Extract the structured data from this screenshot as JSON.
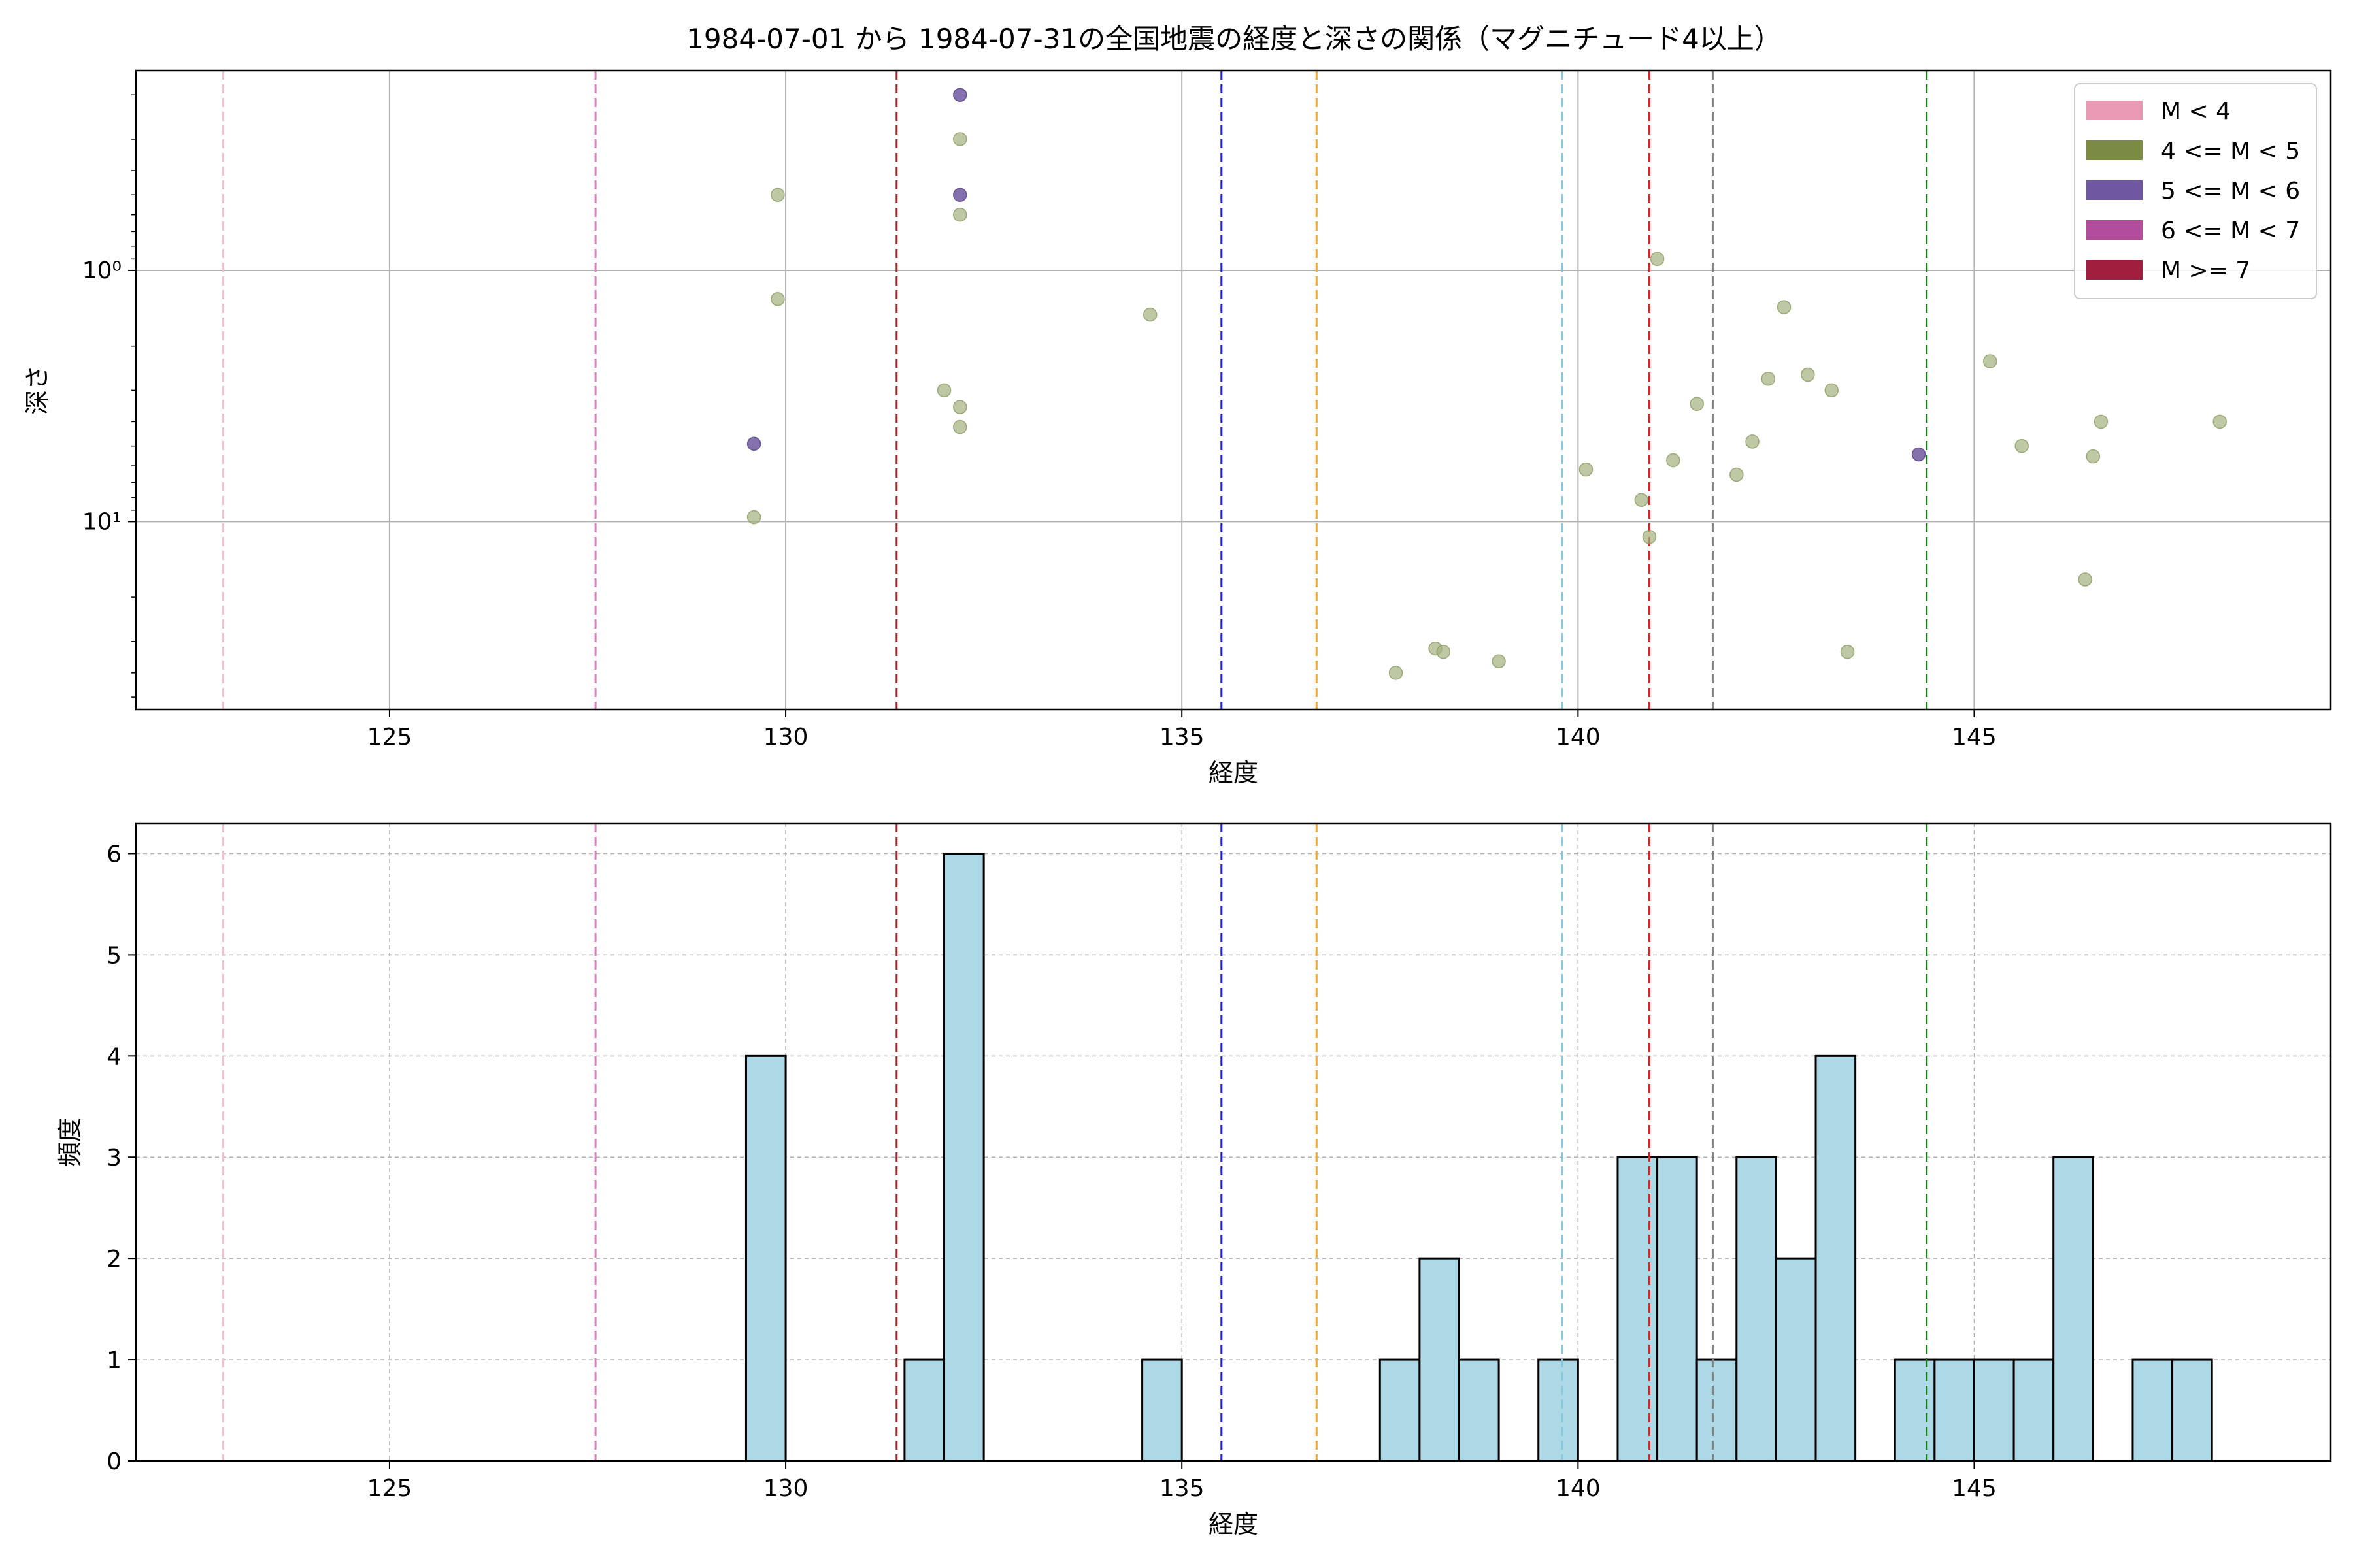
{
  "chart_data": [
    {
      "type": "scatter",
      "title": "1984-07-01 から 1984-07-31の全国地震の経度と深さの関係（マグニチュード4以上）",
      "xlabel": "経度",
      "ylabel": "深さ",
      "xlim": [
        121.8,
        149.5
      ],
      "ylim": [
        56,
        0.16
      ],
      "yscale": "log",
      "y_inverted": true,
      "xticks": [
        125,
        130,
        135,
        140,
        145
      ],
      "xtick_labels": [
        "125",
        "130",
        "135",
        "140",
        "145"
      ],
      "yticks": [
        1,
        10
      ],
      "ytick_labels": [
        "10⁰",
        "10¹"
      ],
      "grid": true,
      "legend": {
        "position": "top-right",
        "entries": [
          {
            "label": "M < 4",
            "color": "#e899b3"
          },
          {
            "label": "4 <= M < 5",
            "color": "#7b8b43"
          },
          {
            "label": "5 <= M < 6",
            "color": "#6f58a0"
          },
          {
            "label": "6 <= M < 7",
            "color": "#b24d9b"
          },
          {
            "label": "M >= 7",
            "color": "#a01f3f"
          }
        ]
      },
      "series": [
        {
          "name": "4 <= M < 5",
          "color": "#a3b07e",
          "points": [
            [
              129.6,
              9.6
            ],
            [
              129.9,
              0.5
            ],
            [
              129.9,
              1.3
            ],
            [
              132.0,
              3.0
            ],
            [
              132.2,
              3.5
            ],
            [
              132.2,
              4.2
            ],
            [
              132.2,
              0.6
            ],
            [
              132.2,
              0.3
            ],
            [
              134.6,
              1.5
            ],
            [
              137.7,
              40
            ],
            [
              138.2,
              32
            ],
            [
              138.3,
              33
            ],
            [
              139.0,
              36
            ],
            [
              140.1,
              6.2
            ],
            [
              140.8,
              8.2
            ],
            [
              140.9,
              11.5
            ],
            [
              141.0,
              0.9
            ],
            [
              141.2,
              5.7
            ],
            [
              141.5,
              3.4
            ],
            [
              142.0,
              6.5
            ],
            [
              142.2,
              4.8
            ],
            [
              142.4,
              2.7
            ],
            [
              142.6,
              1.4
            ],
            [
              142.9,
              2.6
            ],
            [
              143.2,
              3.0
            ],
            [
              143.4,
              33
            ],
            [
              145.2,
              2.3
            ],
            [
              145.6,
              5.0
            ],
            [
              146.4,
              17
            ],
            [
              146.5,
              5.5
            ],
            [
              146.6,
              4.0
            ],
            [
              148.1,
              4.0
            ]
          ]
        },
        {
          "name": "5 <= M < 6",
          "color": "#6f58a0",
          "points": [
            [
              129.6,
              4.9
            ],
            [
              132.2,
              0.2
            ],
            [
              132.2,
              0.5
            ],
            [
              144.3,
              5.4
            ]
          ]
        }
      ],
      "vlines": [
        {
          "x": 122.9,
          "color": "#f4bfd3"
        },
        {
          "x": 127.6,
          "color": "#e07bc4"
        },
        {
          "x": 131.4,
          "color": "#9b2c2c"
        },
        {
          "x": 135.5,
          "color": "#1f1fd6"
        },
        {
          "x": 136.7,
          "color": "#f0a830"
        },
        {
          "x": 139.8,
          "color": "#86c8de"
        },
        {
          "x": 140.9,
          "color": "#e22020"
        },
        {
          "x": 141.7,
          "color": "#808080"
        },
        {
          "x": 144.4,
          "color": "#1e7a1e"
        }
      ]
    },
    {
      "type": "bar",
      "subtype": "histogram",
      "xlabel": "経度",
      "ylabel": "頻度",
      "xlim": [
        121.8,
        149.5
      ],
      "ylim": [
        0,
        6.3
      ],
      "xticks": [
        125,
        130,
        135,
        140,
        145
      ],
      "xtick_labels": [
        "125",
        "130",
        "135",
        "140",
        "145"
      ],
      "yticks": [
        0,
        1,
        2,
        3,
        4,
        5,
        6
      ],
      "ytick_labels": [
        "0",
        "1",
        "2",
        "3",
        "4",
        "5",
        "6"
      ],
      "grid": true,
      "bar_color": "#add8e6",
      "bin_width": 0.5,
      "bins": [
        {
          "x0": 129.5,
          "count": 4
        },
        {
          "x0": 131.5,
          "count": 1
        },
        {
          "x0": 132.0,
          "count": 6
        },
        {
          "x0": 134.5,
          "count": 1
        },
        {
          "x0": 137.5,
          "count": 1
        },
        {
          "x0": 138.0,
          "count": 2
        },
        {
          "x0": 138.5,
          "count": 1
        },
        {
          "x0": 139.5,
          "count": 1
        },
        {
          "x0": 140.5,
          "count": 3
        },
        {
          "x0": 141.0,
          "count": 3
        },
        {
          "x0": 141.5,
          "count": 1
        },
        {
          "x0": 142.0,
          "count": 3
        },
        {
          "x0": 142.5,
          "count": 2
        },
        {
          "x0": 143.0,
          "count": 4
        },
        {
          "x0": 144.0,
          "count": 1
        },
        {
          "x0": 144.5,
          "count": 1
        },
        {
          "x0": 145.0,
          "count": 1
        },
        {
          "x0": 145.5,
          "count": 1
        },
        {
          "x0": 146.0,
          "count": 3
        },
        {
          "x0": 147.0,
          "count": 1
        },
        {
          "x0": 147.5,
          "count": 1
        }
      ],
      "vlines": [
        {
          "x": 122.9,
          "color": "#f4bfd3"
        },
        {
          "x": 127.6,
          "color": "#e07bc4"
        },
        {
          "x": 131.4,
          "color": "#9b2c2c"
        },
        {
          "x": 135.5,
          "color": "#1f1fd6"
        },
        {
          "x": 136.7,
          "color": "#f0a830"
        },
        {
          "x": 139.8,
          "color": "#86c8de"
        },
        {
          "x": 140.9,
          "color": "#e22020"
        },
        {
          "x": 141.7,
          "color": "#808080"
        },
        {
          "x": 144.4,
          "color": "#1e7a1e"
        }
      ]
    }
  ]
}
